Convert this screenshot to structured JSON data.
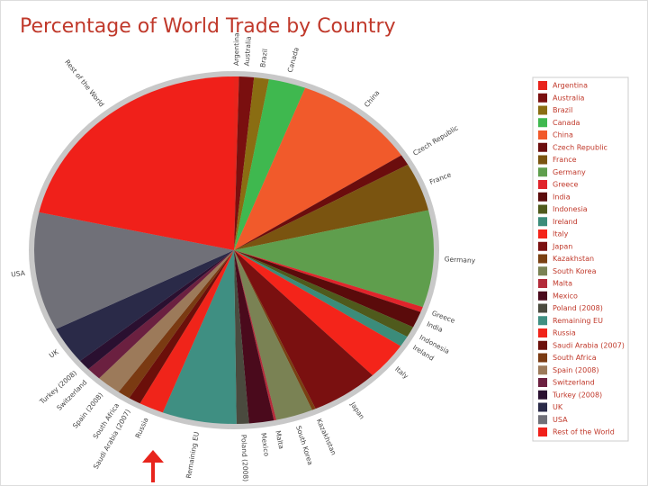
{
  "chart_data": {
    "type": "pie",
    "title": "Percentage of World Trade by Country",
    "categories": [
      "Argentina",
      "Australia",
      "Brazil",
      "Canada",
      "China",
      "Czech Republic",
      "France",
      "Germany",
      "Greece",
      "India",
      "Indonesia",
      "Ireland",
      "Italy",
      "Japan",
      "Kazakhstan",
      "South Korea",
      "Malta",
      "Mexico",
      "Poland (2008)",
      "Remaining EU",
      "Russia",
      "Saudi Arabia (2007)",
      "South Africa",
      "Spain (2008)",
      "Switzerland",
      "Turkey (2008)",
      "UK",
      "USA",
      "Rest of the World"
    ],
    "values": [
      0.4,
      1.2,
      1.2,
      3,
      10,
      1,
      4.5,
      9,
      0.5,
      1.5,
      1,
      1,
      3.5,
      5.5,
      0.3,
      3,
      0.2,
      2,
      1,
      6,
      2,
      1,
      1,
      2,
      1.2,
      1,
      3.5,
      11,
      21.5
    ],
    "colors": [
      "#e8241c",
      "#7a0f0f",
      "#8a6d12",
      "#3fb84f",
      "#f15a2b",
      "#6b0d0d",
      "#7a5410",
      "#5f9e4d",
      "#e0242b",
      "#5a0b0b",
      "#4f5a1c",
      "#3b8c7a",
      "#f4241a",
      "#7a1010",
      "#7a4012",
      "#7a8254",
      "#b32b3a",
      "#4a0a1c",
      "#4a4a3e",
      "#3f8f82",
      "#f0241a",
      "#6b0f0a",
      "#7a3a12",
      "#9c7a5a",
      "#6b2040",
      "#2a1030",
      "#2a2a48",
      "#707078",
      "#f0201a"
    ]
  }
}
